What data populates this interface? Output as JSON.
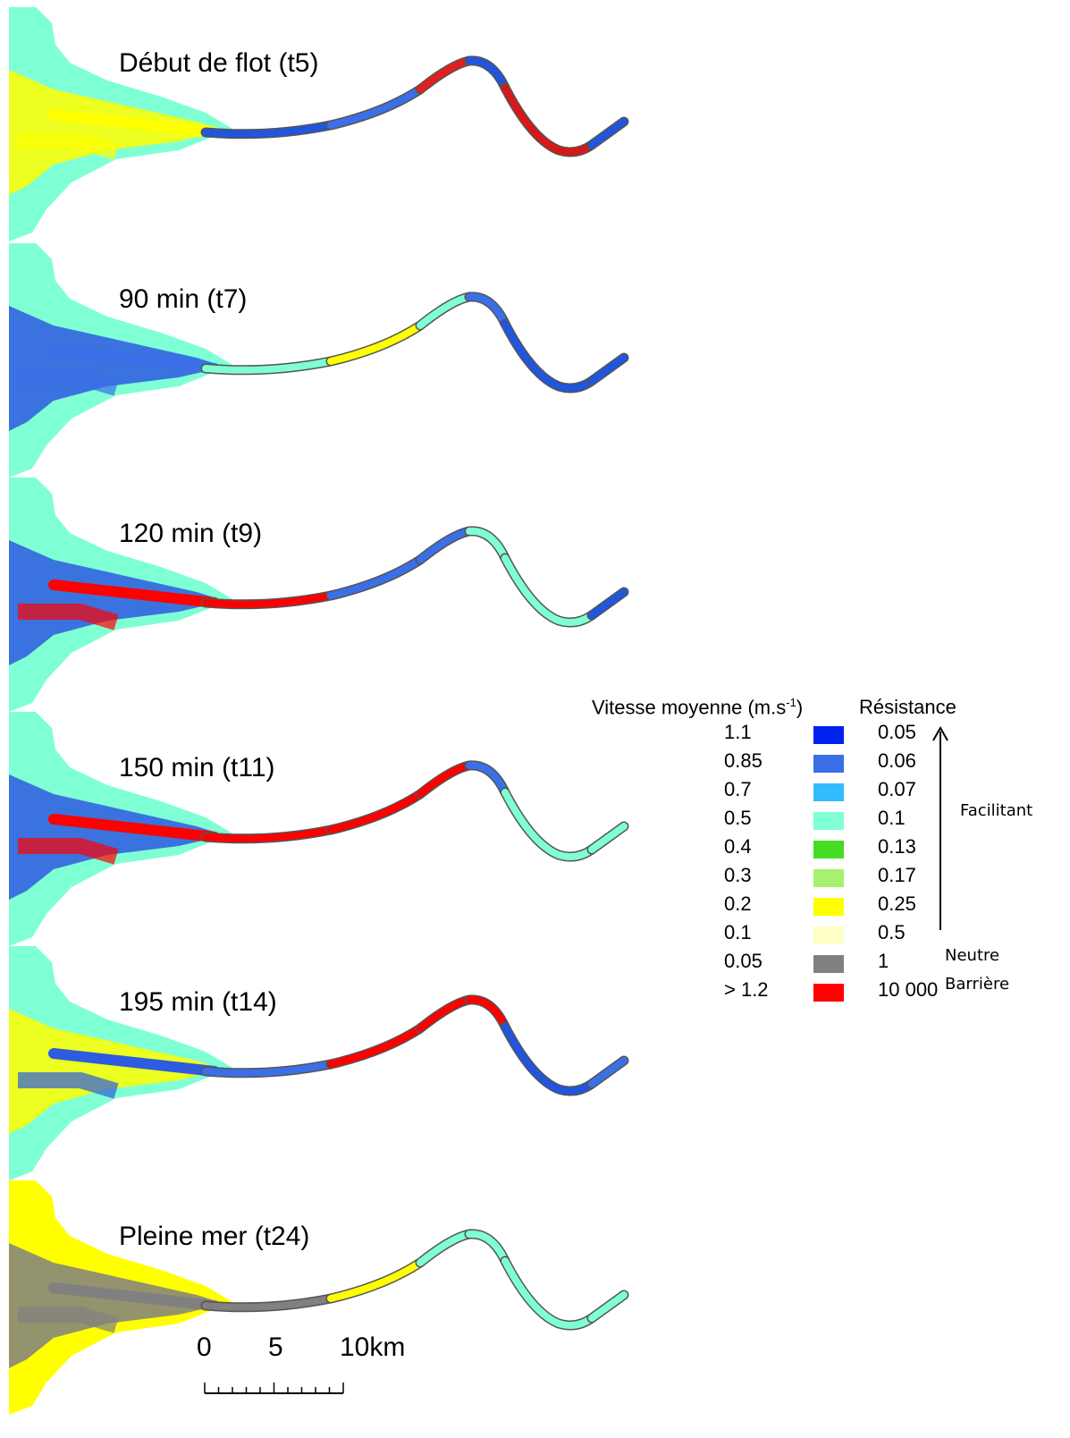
{
  "panels": [
    {
      "title": "Début de flot (t5)",
      "land": "#7fffd4",
      "shore": "#ffff00",
      "channel": [
        "#2255dd",
        "#3a6fe8",
        "#e02020",
        "#2255dd",
        "#d81818",
        "#2255dd"
      ],
      "plume": "#ffff00"
    },
    {
      "title": "90 min (t7)",
      "land": "#7fffd4",
      "shore": "#2e5be0",
      "channel": [
        "#7fffd4",
        "#ffff00",
        "#7fffd4",
        "#3a6fe8",
        "#2255dd",
        "#2255dd"
      ],
      "plume": "#3a6fe8"
    },
    {
      "title": "120 min (t9)",
      "land": "#7fffd4",
      "shore": "#2e5be0",
      "channel": [
        "#ff0000",
        "#3a6fe8",
        "#3a6fe8",
        "#7fffd4",
        "#7fffd4",
        "#2255dd"
      ],
      "plume": "#ff0000"
    },
    {
      "title": "150 min (t11)",
      "land": "#7fffd4",
      "shore": "#2e5be0",
      "channel": [
        "#ff0000",
        "#ff0000",
        "#ff0000",
        "#3a6fe8",
        "#7fffd4",
        "#7fffd4"
      ],
      "plume": "#ff0000"
    },
    {
      "title": "195 min (t14)",
      "land": "#7fffd4",
      "shore": "#ffff00",
      "channel": [
        "#3a6fe8",
        "#ff0000",
        "#ff0000",
        "#ff0000",
        "#2255dd",
        "#3a6fe8"
      ],
      "plume": "#2e5be0"
    },
    {
      "title": "Pleine mer (t24)",
      "land": "#ffff00",
      "shore": "#808080",
      "channel": [
        "#808080",
        "#ffff00",
        "#7fffd4",
        "#7fffd4",
        "#7fffd4",
        "#7fffd4"
      ],
      "plume": "#808080"
    }
  ],
  "legend": {
    "speed_header": "Vitesse moyenne (m.s",
    "speed_header_sup": "-1",
    "speed_header_close": ")",
    "resistance_header": "Résistance",
    "rows": [
      {
        "speed": "1.1",
        "color": "#0022ee",
        "resistance": "0.05"
      },
      {
        "speed": "0.85",
        "color": "#3a6fe8",
        "resistance": "0.06"
      },
      {
        "speed": "0.7",
        "color": "#33bbff",
        "resistance": "0.07"
      },
      {
        "speed": "0.5",
        "color": "#7fffd4",
        "resistance": "0.1"
      },
      {
        "speed": "0.4",
        "color": "#44dd22",
        "resistance": "0.13"
      },
      {
        "speed": "0.3",
        "color": "#a8f070",
        "resistance": "0.17"
      },
      {
        "speed": "0.2",
        "color": "#ffff00",
        "resistance": "0.25"
      },
      {
        "speed": "0.1",
        "color": "#ffffc8",
        "resistance": "0.5"
      },
      {
        "speed": "0.05",
        "color": "#808080",
        "resistance": "1"
      },
      {
        "speed": "> 1.2",
        "color": "#ff0000",
        "resistance": "10 000"
      }
    ],
    "facilitant": "Facilitant",
    "neutre": "Neutre",
    "barriere": "Barrière"
  },
  "scale": {
    "labels": [
      "0",
      "5",
      "10km"
    ]
  }
}
